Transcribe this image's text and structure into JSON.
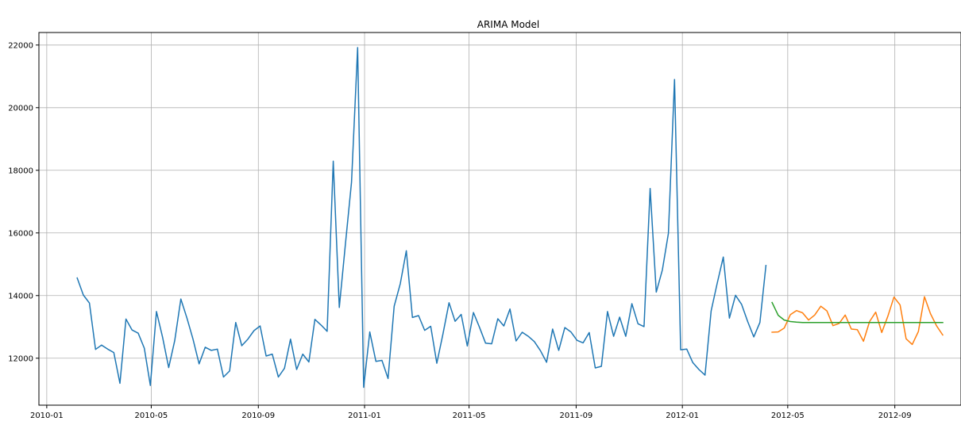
{
  "chart_data": {
    "type": "line",
    "title": "ARIMA Model",
    "xlabel": "",
    "ylabel": "",
    "grid": true,
    "xlim": [
      "2009-12-23",
      "2012-11-16"
    ],
    "ylim": [
      10500,
      22400
    ],
    "x_ticks": [
      "2010-01-01",
      "2010-05-01",
      "2010-09-01",
      "2011-01-01",
      "2011-05-01",
      "2011-09-01",
      "2012-01-01",
      "2012-05-01",
      "2012-09-01"
    ],
    "x_tick_labels": [
      "2010-01",
      "2010-05",
      "2010-09",
      "2011-01",
      "2011-05",
      "2011-09",
      "2012-01",
      "2012-05",
      "2012-09"
    ],
    "y_ticks": [
      12000,
      14000,
      16000,
      18000,
      20000,
      22000
    ],
    "y_tick_labels": [
      "12000",
      "14000",
      "16000",
      "18000",
      "20000",
      "22000"
    ],
    "series": [
      {
        "color": "#1f77b4",
        "points": [
          [
            "2010-02-05",
            14560
          ],
          [
            "2010-02-12",
            14020
          ],
          [
            "2010-02-19",
            13760
          ],
          [
            "2010-02-26",
            12280
          ],
          [
            "2010-03-05",
            12420
          ],
          [
            "2010-03-12",
            12290
          ],
          [
            "2010-03-19",
            12180
          ],
          [
            "2010-03-26",
            11200
          ],
          [
            "2010-04-02",
            13250
          ],
          [
            "2010-04-09",
            12900
          ],
          [
            "2010-04-16",
            12800
          ],
          [
            "2010-04-23",
            12320
          ],
          [
            "2010-04-30",
            11130
          ],
          [
            "2010-05-07",
            13490
          ],
          [
            "2010-05-14",
            12670
          ],
          [
            "2010-05-21",
            11700
          ],
          [
            "2010-05-28",
            12560
          ],
          [
            "2010-06-04",
            13890
          ],
          [
            "2010-06-11",
            13280
          ],
          [
            "2010-06-18",
            12610
          ],
          [
            "2010-06-25",
            11820
          ],
          [
            "2010-07-02",
            12350
          ],
          [
            "2010-07-09",
            12250
          ],
          [
            "2010-07-16",
            12290
          ],
          [
            "2010-07-23",
            11400
          ],
          [
            "2010-07-30",
            11590
          ],
          [
            "2010-08-06",
            13140
          ],
          [
            "2010-08-13",
            12400
          ],
          [
            "2010-08-20",
            12610
          ],
          [
            "2010-08-27",
            12880
          ],
          [
            "2010-09-03",
            13030
          ],
          [
            "2010-09-10",
            12070
          ],
          [
            "2010-09-17",
            12130
          ],
          [
            "2010-09-24",
            11400
          ],
          [
            "2010-10-01",
            11680
          ],
          [
            "2010-10-08",
            12610
          ],
          [
            "2010-10-15",
            11640
          ],
          [
            "2010-10-22",
            12130
          ],
          [
            "2010-10-29",
            11880
          ],
          [
            "2010-11-05",
            13240
          ],
          [
            "2010-11-12",
            13060
          ],
          [
            "2010-11-19",
            12860
          ],
          [
            "2010-11-26",
            18290
          ],
          [
            "2010-12-03",
            13620
          ],
          [
            "2010-12-10",
            15640
          ],
          [
            "2010-12-17",
            17620
          ],
          [
            "2010-12-24",
            21920
          ],
          [
            "2010-12-31",
            11070
          ],
          [
            "2011-01-07",
            12840
          ],
          [
            "2011-01-14",
            11900
          ],
          [
            "2011-01-21",
            11930
          ],
          [
            "2011-01-28",
            11350
          ],
          [
            "2011-02-04",
            13660
          ],
          [
            "2011-02-11",
            14380
          ],
          [
            "2011-02-18",
            15430
          ],
          [
            "2011-02-25",
            13300
          ],
          [
            "2011-03-04",
            13360
          ],
          [
            "2011-03-11",
            12890
          ],
          [
            "2011-03-18",
            13020
          ],
          [
            "2011-03-25",
            11840
          ],
          [
            "2011-04-01",
            12770
          ],
          [
            "2011-04-08",
            13770
          ],
          [
            "2011-04-15",
            13180
          ],
          [
            "2011-04-22",
            13400
          ],
          [
            "2011-04-29",
            12390
          ],
          [
            "2011-05-06",
            13460
          ],
          [
            "2011-05-13",
            12990
          ],
          [
            "2011-05-20",
            12480
          ],
          [
            "2011-05-27",
            12460
          ],
          [
            "2011-06-03",
            13260
          ],
          [
            "2011-06-10",
            13030
          ],
          [
            "2011-06-17",
            13570
          ],
          [
            "2011-06-24",
            12550
          ],
          [
            "2011-07-01",
            12830
          ],
          [
            "2011-07-08",
            12700
          ],
          [
            "2011-07-15",
            12530
          ],
          [
            "2011-07-22",
            12240
          ],
          [
            "2011-07-29",
            11870
          ],
          [
            "2011-08-05",
            12930
          ],
          [
            "2011-08-12",
            12250
          ],
          [
            "2011-08-19",
            12980
          ],
          [
            "2011-08-26",
            12840
          ],
          [
            "2011-09-02",
            12570
          ],
          [
            "2011-09-09",
            12490
          ],
          [
            "2011-09-16",
            12820
          ],
          [
            "2011-09-23",
            11690
          ],
          [
            "2011-09-30",
            11740
          ],
          [
            "2011-10-07",
            13490
          ],
          [
            "2011-10-14",
            12700
          ],
          [
            "2011-10-21",
            13310
          ],
          [
            "2011-10-28",
            12700
          ],
          [
            "2011-11-04",
            13740
          ],
          [
            "2011-11-11",
            13100
          ],
          [
            "2011-11-18",
            13010
          ],
          [
            "2011-11-25",
            17420
          ],
          [
            "2011-12-02",
            14110
          ],
          [
            "2011-12-09",
            14820
          ],
          [
            "2011-12-16",
            15990
          ],
          [
            "2011-12-23",
            20900
          ],
          [
            "2011-12-30",
            12270
          ],
          [
            "2012-01-06",
            12290
          ],
          [
            "2012-01-13",
            11860
          ],
          [
            "2012-01-20",
            11640
          ],
          [
            "2012-01-27",
            11460
          ],
          [
            "2012-02-03",
            13510
          ],
          [
            "2012-02-10",
            14390
          ],
          [
            "2012-02-17",
            15230
          ],
          [
            "2012-02-24",
            13280
          ],
          [
            "2012-03-02",
            14010
          ],
          [
            "2012-03-09",
            13720
          ],
          [
            "2012-03-16",
            13170
          ],
          [
            "2012-03-23",
            12680
          ],
          [
            "2012-03-30",
            13140
          ],
          [
            "2012-04-06",
            14960
          ]
        ]
      },
      {
        "color": "#ff7f0e",
        "points": [
          [
            "2012-04-13",
            12830
          ],
          [
            "2012-04-20",
            12840
          ],
          [
            "2012-04-27",
            12960
          ],
          [
            "2012-05-04",
            13390
          ],
          [
            "2012-05-11",
            13520
          ],
          [
            "2012-05-18",
            13450
          ],
          [
            "2012-05-25",
            13220
          ],
          [
            "2012-06-01",
            13380
          ],
          [
            "2012-06-08",
            13660
          ],
          [
            "2012-06-15",
            13510
          ],
          [
            "2012-06-22",
            13040
          ],
          [
            "2012-06-29",
            13110
          ],
          [
            "2012-07-06",
            13380
          ],
          [
            "2012-07-13",
            12930
          ],
          [
            "2012-07-20",
            12910
          ],
          [
            "2012-07-27",
            12540
          ],
          [
            "2012-08-03",
            13170
          ],
          [
            "2012-08-10",
            13470
          ],
          [
            "2012-08-17",
            12820
          ],
          [
            "2012-08-24",
            13340
          ],
          [
            "2012-08-31",
            13950
          ],
          [
            "2012-09-07",
            13700
          ],
          [
            "2012-09-14",
            12620
          ],
          [
            "2012-09-21",
            12440
          ],
          [
            "2012-09-28",
            12850
          ],
          [
            "2012-10-05",
            13960
          ],
          [
            "2012-10-12",
            13420
          ],
          [
            "2012-10-19",
            13030
          ],
          [
            "2012-10-26",
            12740
          ]
        ]
      },
      {
        "color": "#2ca02c",
        "points": [
          [
            "2012-04-13",
            13780
          ],
          [
            "2012-04-20",
            13370
          ],
          [
            "2012-04-27",
            13220
          ],
          [
            "2012-05-04",
            13170
          ],
          [
            "2012-05-11",
            13150
          ],
          [
            "2012-05-18",
            13140
          ],
          [
            "2012-05-25",
            13140
          ],
          [
            "2012-06-01",
            13140
          ],
          [
            "2012-06-08",
            13140
          ],
          [
            "2012-06-15",
            13140
          ],
          [
            "2012-06-22",
            13140
          ],
          [
            "2012-06-29",
            13140
          ],
          [
            "2012-07-06",
            13140
          ],
          [
            "2012-07-13",
            13140
          ],
          [
            "2012-07-20",
            13140
          ],
          [
            "2012-07-27",
            13140
          ],
          [
            "2012-08-03",
            13140
          ],
          [
            "2012-08-10",
            13140
          ],
          [
            "2012-08-17",
            13140
          ],
          [
            "2012-08-24",
            13140
          ],
          [
            "2012-08-31",
            13140
          ],
          [
            "2012-09-07",
            13140
          ],
          [
            "2012-09-14",
            13140
          ],
          [
            "2012-09-21",
            13140
          ],
          [
            "2012-09-28",
            13140
          ],
          [
            "2012-10-05",
            13140
          ],
          [
            "2012-10-12",
            13140
          ],
          [
            "2012-10-19",
            13140
          ],
          [
            "2012-10-26",
            13140
          ]
        ]
      }
    ]
  }
}
